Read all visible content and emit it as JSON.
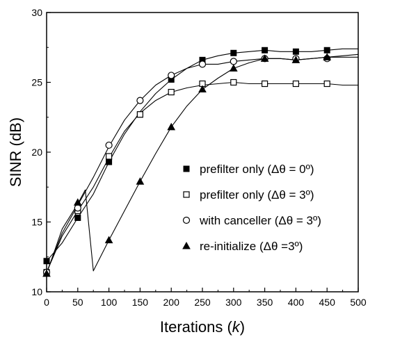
{
  "chart_data": {
    "type": "line",
    "title": "",
    "xlabel": "Iterations (k)",
    "xlabel_parts": {
      "main": "Iterations (",
      "var": "k",
      "close": ")"
    },
    "ylabel": "SINR (dB)",
    "xlim": [
      0,
      500
    ],
    "ylim": [
      10,
      30
    ],
    "xticks": [
      0,
      50,
      100,
      150,
      200,
      250,
      300,
      350,
      400,
      450,
      500
    ],
    "yticks": [
      10,
      15,
      20,
      25,
      30
    ],
    "grid": false,
    "legend_position": "center-right",
    "series": [
      {
        "name": "prefilter only (Δθ = 0º)",
        "marker": "filled-square",
        "line": [
          [
            0,
            12.2
          ],
          [
            25,
            13.5
          ],
          [
            50,
            15.3
          ],
          [
            75,
            17.0
          ],
          [
            100,
            19.3
          ],
          [
            125,
            21.3
          ],
          [
            150,
            22.9
          ],
          [
            175,
            24.2
          ],
          [
            200,
            25.2
          ],
          [
            225,
            26.0
          ],
          [
            250,
            26.6
          ],
          [
            275,
            26.9
          ],
          [
            300,
            27.1
          ],
          [
            325,
            27.2
          ],
          [
            350,
            27.3
          ],
          [
            375,
            27.2
          ],
          [
            400,
            27.2
          ],
          [
            425,
            27.2
          ],
          [
            450,
            27.3
          ],
          [
            475,
            27.4
          ],
          [
            500,
            27.4
          ]
        ],
        "markers": [
          [
            0,
            12.2
          ],
          [
            50,
            15.3
          ],
          [
            100,
            19.3
          ],
          [
            150,
            22.7
          ],
          [
            200,
            25.2
          ],
          [
            250,
            26.6
          ],
          [
            300,
            27.1
          ],
          [
            350,
            27.3
          ],
          [
            400,
            27.2
          ],
          [
            450,
            27.3
          ]
        ]
      },
      {
        "name": "prefilter only (Δθ = 3º)",
        "marker": "open-square",
        "line": [
          [
            0,
            11.4
          ],
          [
            25,
            14.0
          ],
          [
            50,
            15.8
          ],
          [
            75,
            17.5
          ],
          [
            100,
            19.6
          ],
          [
            125,
            21.5
          ],
          [
            150,
            22.8
          ],
          [
            175,
            23.7
          ],
          [
            200,
            24.3
          ],
          [
            225,
            24.6
          ],
          [
            250,
            24.8
          ],
          [
            275,
            24.9
          ],
          [
            300,
            25.0
          ],
          [
            325,
            24.9
          ],
          [
            350,
            24.9
          ],
          [
            375,
            24.9
          ],
          [
            400,
            24.9
          ],
          [
            425,
            24.9
          ],
          [
            450,
            24.9
          ],
          [
            475,
            24.8
          ],
          [
            500,
            24.8
          ]
        ],
        "markers": [
          [
            0,
            11.4
          ],
          [
            50,
            15.8
          ],
          [
            100,
            19.7
          ],
          [
            150,
            22.7
          ],
          [
            200,
            24.3
          ],
          [
            250,
            24.9
          ],
          [
            300,
            25.0
          ],
          [
            350,
            24.9
          ],
          [
            400,
            24.9
          ],
          [
            450,
            24.9
          ]
        ]
      },
      {
        "name": "with canceller (Δθ = 3º)",
        "marker": "open-circle",
        "line": [
          [
            0,
            11.4
          ],
          [
            25,
            14.2
          ],
          [
            50,
            16.2
          ],
          [
            75,
            18.2
          ],
          [
            100,
            20.4
          ],
          [
            125,
            22.3
          ],
          [
            150,
            23.7
          ],
          [
            175,
            24.8
          ],
          [
            200,
            25.5
          ],
          [
            225,
            26.0
          ],
          [
            250,
            26.3
          ],
          [
            275,
            26.3
          ],
          [
            300,
            26.5
          ],
          [
            325,
            26.6
          ],
          [
            350,
            26.7
          ],
          [
            375,
            26.7
          ],
          [
            400,
            26.6
          ],
          [
            425,
            26.7
          ],
          [
            450,
            26.8
          ],
          [
            475,
            26.9
          ],
          [
            500,
            27.0
          ]
        ],
        "markers": [
          [
            0,
            11.4
          ],
          [
            50,
            16.0
          ],
          [
            100,
            20.5
          ],
          [
            150,
            23.7
          ],
          [
            200,
            25.5
          ],
          [
            250,
            26.3
          ],
          [
            300,
            26.5
          ],
          [
            350,
            26.7
          ],
          [
            400,
            26.7
          ],
          [
            450,
            26.7
          ]
        ]
      },
      {
        "name": "re-initialize (Δθ =3º)",
        "marker": "filled-triangle",
        "line": [
          [
            0,
            11.3
          ],
          [
            25,
            14.5
          ],
          [
            50,
            16.3
          ],
          [
            62,
            17.3
          ],
          [
            75,
            11.5
          ],
          [
            100,
            13.7
          ],
          [
            125,
            15.8
          ],
          [
            150,
            17.9
          ],
          [
            175,
            19.9
          ],
          [
            200,
            21.8
          ],
          [
            225,
            23.3
          ],
          [
            250,
            24.5
          ],
          [
            275,
            25.3
          ],
          [
            300,
            26.0
          ],
          [
            325,
            26.4
          ],
          [
            350,
            26.7
          ],
          [
            375,
            26.7
          ],
          [
            400,
            26.6
          ],
          [
            425,
            26.7
          ],
          [
            450,
            26.8
          ],
          [
            475,
            26.8
          ],
          [
            500,
            26.8
          ]
        ],
        "markers": [
          [
            0,
            11.3
          ],
          [
            50,
            16.4
          ],
          [
            100,
            13.7
          ],
          [
            150,
            17.9
          ],
          [
            200,
            21.8
          ],
          [
            250,
            24.5
          ],
          [
            300,
            26.0
          ],
          [
            350,
            26.7
          ],
          [
            400,
            26.6
          ],
          [
            450,
            26.8
          ]
        ]
      }
    ]
  }
}
